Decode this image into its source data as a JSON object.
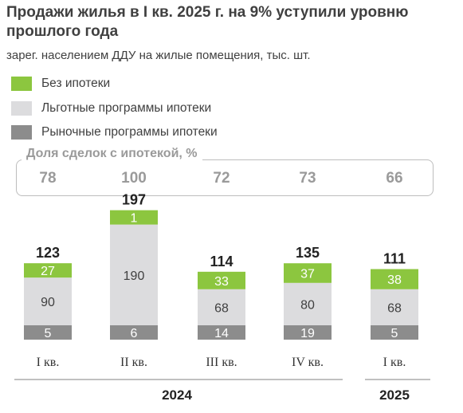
{
  "header": {
    "title": "Продажи жилья в I кв. 2025 г. на 9% уступили уровню прошлого года",
    "subtitle": "зарег. населением ДДУ на жилые помещения, тыс. шт."
  },
  "legend": [
    {
      "label": "Без ипотеки",
      "color": "#8cc63f"
    },
    {
      "label": "Льготные программы ипотеки",
      "color": "#dcdcde"
    },
    {
      "label": "Рыночные программы ипотеки",
      "color": "#8c8c8c"
    }
  ],
  "mortgage_share": {
    "title": "Доля сделок с ипотекой, %",
    "values": [
      "78",
      "100",
      "72",
      "73",
      "66"
    ]
  },
  "chart_data": {
    "type": "bar",
    "stacked": true,
    "categories": [
      "I кв.",
      "II кв.",
      "III кв.",
      "IV кв.",
      "I кв."
    ],
    "groups": [
      {
        "label": "2024",
        "categories": [
          0,
          1,
          2,
          3
        ]
      },
      {
        "label": "2025",
        "categories": [
          4
        ]
      }
    ],
    "series": [
      {
        "name": "Рыночные программы ипотеки",
        "values": [
          5,
          6,
          14,
          19,
          5
        ]
      },
      {
        "name": "Льготные программы ипотеки",
        "values": [
          90,
          190,
          68,
          80,
          68
        ]
      },
      {
        "name": "Без ипотеки",
        "values": [
          27,
          1,
          33,
          37,
          38
        ]
      }
    ],
    "totals": [
      123,
      197,
      114,
      135,
      111
    ],
    "ylim": [
      0,
      200
    ]
  }
}
